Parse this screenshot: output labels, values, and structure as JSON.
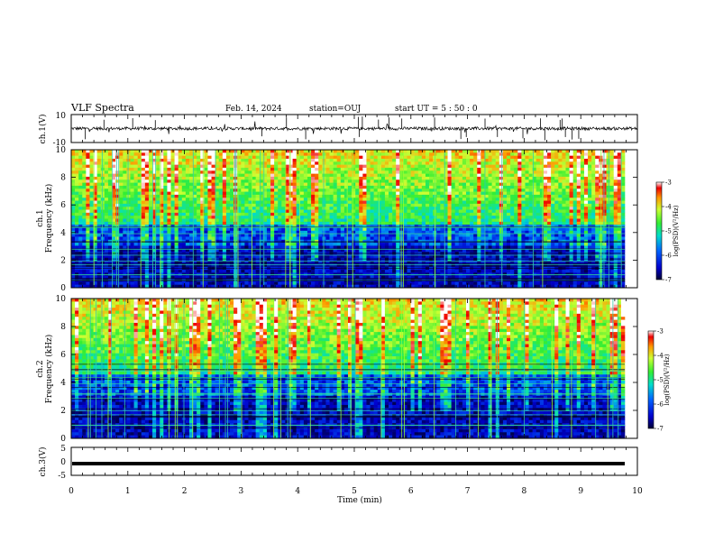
{
  "header": {
    "title": "VLF Spectra",
    "date": "Feb. 14, 2024",
    "station": "station=OUJ",
    "start": "start UT =  5 : 50 : 0"
  },
  "chart_data": [
    {
      "type": "line",
      "name": "ch1-waveform",
      "ylabel": "ch.1(V)",
      "ylim": [
        -10,
        10
      ],
      "yticks": [
        "10",
        "-10"
      ],
      "baseline": 0,
      "xlim": [
        0,
        10
      ]
    },
    {
      "type": "heatmap",
      "name": "ch1-spectrogram",
      "ylabel": "ch.1",
      "ylabel2": "Frequency (kHz)",
      "xlim": [
        0,
        10
      ],
      "ylim": [
        0,
        10
      ],
      "yticks": [
        "10",
        "8",
        "6",
        "4",
        "2",
        "0"
      ],
      "colorbar": {
        "label": "log(PSD)(V²/Hz)",
        "range": [
          -7,
          -3
        ],
        "ticks": [
          "-3",
          "-4",
          "-5",
          "-6",
          "-7"
        ]
      }
    },
    {
      "type": "heatmap",
      "name": "ch2-spectrogram",
      "ylabel": "ch.2",
      "ylabel2": "Frequency (kHz)",
      "xlim": [
        0,
        10
      ],
      "ylim": [
        0,
        10
      ],
      "yticks": [
        "10",
        "8",
        "6",
        "4",
        "2",
        "0"
      ],
      "colorbar": {
        "label": "log(PSD)(V²/Hz)",
        "range": [
          -7,
          -3
        ],
        "ticks": [
          "-3",
          "-4",
          "-5",
          "-6",
          "-7"
        ]
      }
    },
    {
      "type": "line",
      "name": "ch3-waveform",
      "ylabel": "ch.3(V)",
      "ylim": [
        -5,
        5
      ],
      "yticks": [
        "5",
        "0",
        "-5"
      ],
      "baseline": -0.8,
      "xlim": [
        0,
        10
      ]
    }
  ],
  "xaxis": {
    "label": "Time (min)",
    "ticks": [
      "0",
      "1",
      "2",
      "3",
      "4",
      "5",
      "6",
      "7",
      "8",
      "9",
      "10"
    ]
  }
}
